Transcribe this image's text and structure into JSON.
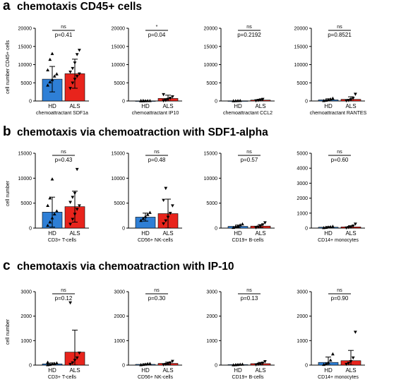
{
  "colors": {
    "HD": "#2e7fd6",
    "ALS": "#e8241c"
  },
  "panels": [
    {
      "letter": "a",
      "title": "chemotaxis CD45+ cells",
      "ylabel": "cell number CD45+ cells"
    },
    {
      "letter": "b",
      "title": "chemotaxis via chemoatraction with SDF1-alpha",
      "ylabel": "cell number"
    },
    {
      "letter": "c",
      "title": "chemotaxis via chemoatraction with IP-10",
      "ylabel": "cell number"
    }
  ],
  "chart_data": [
    {
      "type": "bar",
      "categories": [
        "HD",
        "ALS"
      ],
      "xlabel": "chemoattractant SDF1a",
      "ylim": [
        0,
        20000
      ],
      "yticks": [
        0,
        5000,
        10000,
        15000,
        20000
      ],
      "series": [
        {
          "values": [
            6000,
            7500
          ]
        }
      ],
      "error": [
        3500,
        4000
      ],
      "sig": "ns",
      "p": "p=0.41",
      "points": [
        [
          4300,
          5200,
          5800,
          6800,
          7400,
          8500,
          11400,
          13000
        ],
        [
          3500,
          5000,
          6000,
          6800,
          7500,
          8000,
          9000,
          10500,
          12800,
          14000
        ]
      ]
    },
    {
      "type": "bar",
      "categories": [
        "HD",
        "ALS"
      ],
      "xlabel": "chemoattractant IP10",
      "ylim": [
        0,
        20000
      ],
      "yticks": [
        0,
        5000,
        10000,
        15000,
        20000
      ],
      "series": [
        {
          "values": [
            40,
            700
          ]
        }
      ],
      "error": [
        40,
        900
      ],
      "sig": "*",
      "p": "p=0.04",
      "points": [
        [
          10,
          20,
          40,
          50,
          60,
          80,
          100
        ],
        [
          100,
          300,
          500,
          800,
          1200,
          1800,
          200
        ]
      ]
    },
    {
      "type": "bar",
      "categories": [
        "HD",
        "ALS"
      ],
      "xlabel": "chemoattractant CCL2",
      "ylim": [
        0,
        20000
      ],
      "yticks": [
        0,
        5000,
        10000,
        15000,
        20000
      ],
      "series": [
        {
          "values": [
            50,
            250
          ]
        }
      ],
      "error": [
        30,
        200
      ],
      "sig": "ns",
      "p": "p=0.2192",
      "points": [
        [
          20,
          40,
          60,
          80
        ],
        [
          100,
          200,
          350,
          500
        ]
      ]
    },
    {
      "type": "bar",
      "categories": [
        "HD",
        "ALS"
      ],
      "xlabel": "chemoattractant RANTES",
      "ylim": [
        0,
        20000
      ],
      "yticks": [
        0,
        5000,
        10000,
        15000,
        20000
      ],
      "series": [
        {
          "values": [
            300,
            450
          ]
        }
      ],
      "error": [
        300,
        700
      ],
      "sig": "ns",
      "p": "p=0.8521",
      "points": [
        [
          50,
          150,
          300,
          500,
          700
        ],
        [
          100,
          200,
          400,
          800,
          1900
        ]
      ]
    },
    {
      "type": "bar",
      "categories": [
        "HD",
        "ALS"
      ],
      "xlabel": "CD3+ T-cells",
      "ylim": [
        0,
        15000
      ],
      "yticks": [
        0,
        5000,
        10000,
        15000
      ],
      "series": [
        {
          "values": [
            3200,
            4300
          ]
        }
      ],
      "error": [
        3000,
        3100
      ],
      "sig": "ns",
      "p": "p=0.43",
      "points": [
        [
          500,
          1200,
          2000,
          2800,
          3400,
          4500,
          6000,
          9800
        ],
        [
          800,
          1800,
          2800,
          3800,
          4500,
          5200,
          6200,
          7000,
          11800
        ]
      ]
    },
    {
      "type": "bar",
      "categories": [
        "HD",
        "ALS"
      ],
      "xlabel": "CD56+ NK-cells",
      "ylim": [
        0,
        15000
      ],
      "yticks": [
        0,
        5000,
        10000,
        15000
      ],
      "series": [
        {
          "values": [
            2200,
            2900
          ]
        }
      ],
      "error": [
        800,
        2900
      ],
      "sig": "ns",
      "p": "p=0.48",
      "points": [
        [
          1500,
          1900,
          2300,
          2700,
          3100
        ],
        [
          900,
          1500,
          2200,
          3000,
          4500,
          5600,
          8000
        ]
      ]
    },
    {
      "type": "bar",
      "categories": [
        "HD",
        "ALS"
      ],
      "xlabel": "CD19+ B-cells",
      "ylim": [
        0,
        15000
      ],
      "yticks": [
        0,
        5000,
        10000,
        15000
      ],
      "series": [
        {
          "values": [
            350,
            400
          ]
        }
      ],
      "error": [
        250,
        300
      ],
      "sig": "ns",
      "p": "p=0.57",
      "points": [
        [
          100,
          250,
          400,
          600,
          800
        ],
        [
          100,
          250,
          400,
          700,
          1100
        ]
      ]
    },
    {
      "type": "bar",
      "categories": [
        "HD",
        "ALS"
      ],
      "xlabel": "CD14+ monocytes",
      "ylim": [
        0,
        5000
      ],
      "yticks": [
        0,
        1000,
        2000,
        3000,
        4000,
        5000
      ],
      "series": [
        {
          "values": [
            60,
            80
          ]
        }
      ],
      "error": [
        40,
        80
      ],
      "sig": "ns",
      "p": "p=0.60",
      "points": [
        [
          20,
          40,
          60,
          80,
          110
        ],
        [
          20,
          50,
          80,
          150,
          280
        ]
      ]
    },
    {
      "type": "bar",
      "categories": [
        "HD",
        "ALS"
      ],
      "xlabel": "CD3+ T-cells",
      "ylim": [
        0,
        3000
      ],
      "yticks": [
        0,
        1000,
        2000,
        3000
      ],
      "series": [
        {
          "values": [
            50,
            530
          ]
        }
      ],
      "error": [
        40,
        900
      ],
      "sig": "ns",
      "p": "p=0.12",
      "points": [
        [
          10,
          20,
          40,
          60,
          80,
          110
        ],
        [
          40,
          100,
          200,
          300,
          500,
          2550
        ]
      ]
    },
    {
      "type": "bar",
      "categories": [
        "HD",
        "ALS"
      ],
      "xlabel": "CD56+ NK-cells",
      "ylim": [
        0,
        3000
      ],
      "yticks": [
        0,
        1000,
        2000,
        3000
      ],
      "series": [
        {
          "values": [
            30,
            70
          ]
        }
      ],
      "error": [
        20,
        50
      ],
      "sig": "ns",
      "p": "p=0.30",
      "points": [
        [
          10,
          20,
          30,
          50,
          60
        ],
        [
          20,
          40,
          70,
          100,
          160
        ]
      ]
    },
    {
      "type": "bar",
      "categories": [
        "HD",
        "ALS"
      ],
      "xlabel": "CD19+ B-cells",
      "ylim": [
        0,
        3000
      ],
      "yticks": [
        0,
        1000,
        2000,
        3000
      ],
      "series": [
        {
          "values": [
            20,
            60
          ]
        }
      ],
      "error": [
        10,
        50
      ],
      "sig": "ns",
      "p": "p=0.13",
      "points": [
        [
          5,
          10,
          15,
          25,
          30
        ],
        [
          20,
          40,
          60,
          90,
          150
        ]
      ]
    },
    {
      "type": "bar",
      "categories": [
        "HD",
        "ALS"
      ],
      "xlabel": "CD14+ monocytes",
      "ylim": [
        0,
        3000
      ],
      "yticks": [
        0,
        1000,
        2000,
        3000
      ],
      "series": [
        {
          "values": [
            110,
            180
          ]
        }
      ],
      "error": [
        220,
        420
      ],
      "sig": "ns",
      "p": "p=0.90",
      "points": [
        [
          20,
          50,
          100,
          200,
          450
        ],
        [
          40,
          80,
          150,
          300,
          1350
        ]
      ]
    }
  ]
}
